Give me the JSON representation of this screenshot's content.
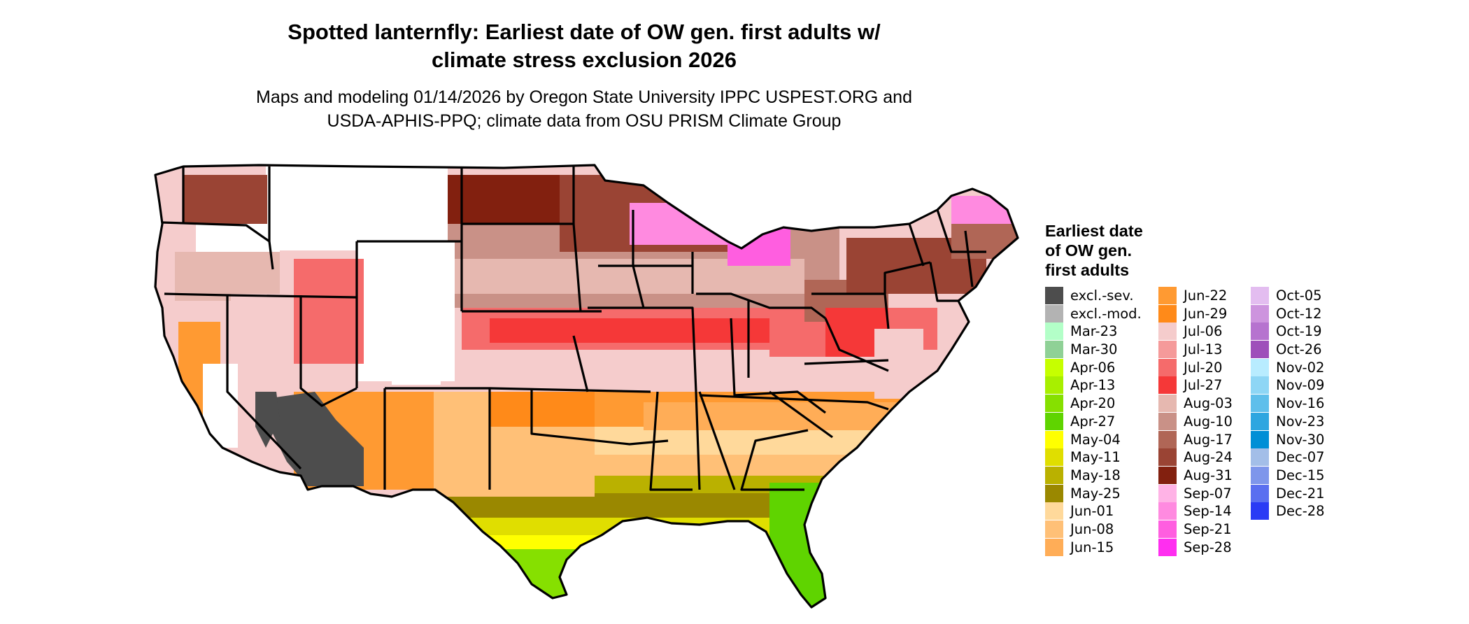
{
  "title_line1": "Spotted lanternfly: Earliest date of OW gen. first adults w/",
  "title_line2": "climate stress exclusion 2026",
  "subtitle_line1": "Maps and modeling 01/14/2026 by Oregon State University IPPC USPEST.ORG and",
  "subtitle_line2": "USDA-APHIS-PPQ; climate data from OSU PRISM Climate Group",
  "legend": {
    "title_lines": [
      "Earliest date",
      "of OW gen.",
      "first adults"
    ],
    "columns": [
      [
        {
          "label": "excl.-sev.",
          "color": "#4d4d4d"
        },
        {
          "label": "excl.-mod.",
          "color": "#b3b3b3"
        },
        {
          "label": "Mar-23",
          "color": "#b3ffc8"
        },
        {
          "label": "Mar-30",
          "color": "#8fd196"
        },
        {
          "label": "Apr-06",
          "color": "#c6ff00"
        },
        {
          "label": "Apr-13",
          "color": "#a8ef00"
        },
        {
          "label": "Apr-20",
          "color": "#86e000"
        },
        {
          "label": "Apr-27",
          "color": "#5fd400"
        },
        {
          "label": "May-04",
          "color": "#ffff00"
        },
        {
          "label": "May-11",
          "color": "#e0de00"
        },
        {
          "label": "May-18",
          "color": "#bab100"
        },
        {
          "label": "May-25",
          "color": "#9a8800"
        },
        {
          "label": "Jun-01",
          "color": "#ffd99b"
        },
        {
          "label": "Jun-08",
          "color": "#ffc077"
        },
        {
          "label": "Jun-15",
          "color": "#ffad57"
        }
      ],
      [
        {
          "label": "Jun-22",
          "color": "#ff9a32"
        },
        {
          "label": "Jun-29",
          "color": "#ff8a19"
        },
        {
          "label": "Jul-06",
          "color": "#f5cccc"
        },
        {
          "label": "Jul-13",
          "color": "#f59a9a"
        },
        {
          "label": "Jul-20",
          "color": "#f56b6b"
        },
        {
          "label": "Jul-27",
          "color": "#f53838"
        },
        {
          "label": "Aug-03",
          "color": "#e6b8b0"
        },
        {
          "label": "Aug-10",
          "color": "#c99187"
        },
        {
          "label": "Aug-17",
          "color": "#b06656"
        },
        {
          "label": "Aug-24",
          "color": "#9a4434"
        },
        {
          "label": "Aug-31",
          "color": "#82200f"
        },
        {
          "label": "Sep-07",
          "color": "#ffb3e6"
        },
        {
          "label": "Sep-14",
          "color": "#ff8ae0"
        },
        {
          "label": "Sep-21",
          "color": "#ff5ee0"
        },
        {
          "label": "Sep-28",
          "color": "#ff2ef0"
        }
      ],
      [
        {
          "label": "Oct-05",
          "color": "#e3bdf0"
        },
        {
          "label": "Oct-12",
          "color": "#cd94de"
        },
        {
          "label": "Oct-19",
          "color": "#b673cf"
        },
        {
          "label": "Oct-26",
          "color": "#9e4fba"
        },
        {
          "label": "Nov-02",
          "color": "#b8ecff"
        },
        {
          "label": "Nov-09",
          "color": "#8ed6f5"
        },
        {
          "label": "Nov-16",
          "color": "#5fbfeb"
        },
        {
          "label": "Nov-23",
          "color": "#2ea6e0"
        },
        {
          "label": "Nov-30",
          "color": "#008fd6"
        },
        {
          "label": "Dec-07",
          "color": "#a3bee8"
        },
        {
          "label": "Dec-15",
          "color": "#7e96eb"
        },
        {
          "label": "Dec-21",
          "color": "#5a6ff0"
        },
        {
          "label": "Dec-28",
          "color": "#2a3bf5"
        }
      ]
    ]
  }
}
